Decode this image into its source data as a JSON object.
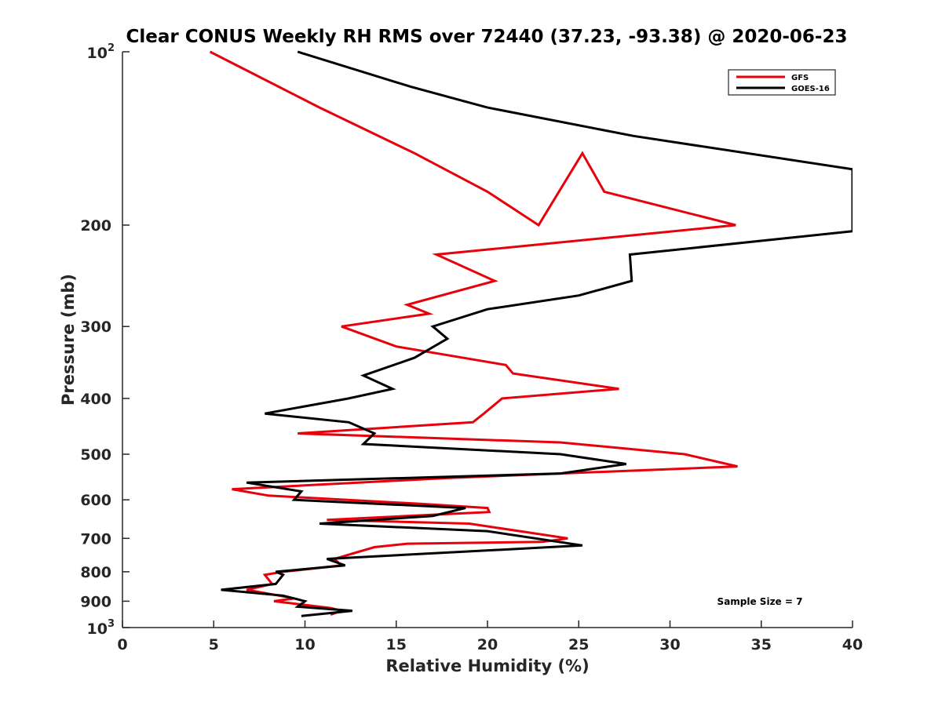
{
  "chart_data": {
    "type": "line",
    "title": "Clear CONUS Weekly RH RMS over 72440 (37.23, -93.38) @ 2020-06-23",
    "xlabel": "Relative Humidity (%)",
    "ylabel": "Pressure (mb)",
    "xlim": [
      0,
      40
    ],
    "ylim": [
      100,
      1000
    ],
    "y_scale": "log",
    "y_reversed": true,
    "grid": false,
    "legend_position": "top-right",
    "x_ticks": [
      0,
      5,
      10,
      15,
      20,
      25,
      30,
      35,
      40
    ],
    "y_ticks": [
      {
        "value": 100,
        "base": "10",
        "exp": "2"
      },
      {
        "value": 200,
        "label": "200"
      },
      {
        "value": 300,
        "label": "300"
      },
      {
        "value": 400,
        "label": "400"
      },
      {
        "value": 500,
        "label": "500"
      },
      {
        "value": 600,
        "label": "600"
      },
      {
        "value": 700,
        "label": "700"
      },
      {
        "value": 800,
        "label": "800"
      },
      {
        "value": 900,
        "label": "900"
      },
      {
        "value": 1000,
        "base": "10",
        "exp": "3"
      }
    ],
    "annotation": "Sample Size = 7",
    "series": [
      {
        "name": "GFS",
        "color": "#e8000b",
        "points": [
          [
            4.8,
            100
          ],
          [
            10.8,
            125
          ],
          [
            16.0,
            150
          ],
          [
            20.0,
            175
          ],
          [
            22.8,
            200
          ],
          [
            25.2,
            150
          ],
          [
            26.4,
            175
          ],
          [
            33.6,
            200
          ],
          [
            17.2,
            225
          ],
          [
            20.4,
            250
          ],
          [
            15.6,
            275
          ],
          [
            16.8,
            285
          ],
          [
            12.0,
            300
          ],
          [
            15.0,
            325
          ],
          [
            21.0,
            350
          ],
          [
            21.4,
            362
          ],
          [
            27.2,
            385
          ],
          [
            20.8,
            400
          ],
          [
            19.8,
            425
          ],
          [
            19.2,
            440
          ],
          [
            9.6,
            460
          ],
          [
            24.0,
            477
          ],
          [
            30.8,
            500
          ],
          [
            33.7,
            525
          ],
          [
            17.8,
            550
          ],
          [
            6.0,
            575
          ],
          [
            8.0,
            590
          ],
          [
            16.4,
            610
          ],
          [
            20.0,
            620
          ],
          [
            20.1,
            630
          ],
          [
            11.2,
            650
          ],
          [
            19.0,
            660
          ],
          [
            24.4,
            700
          ],
          [
            23.0,
            710
          ],
          [
            15.6,
            715
          ],
          [
            13.8,
            725
          ],
          [
            11.6,
            760
          ],
          [
            12.0,
            780
          ],
          [
            8.8,
            800
          ],
          [
            7.8,
            810
          ],
          [
            8.2,
            840
          ],
          [
            6.8,
            860
          ],
          [
            8.6,
            880
          ],
          [
            9.4,
            890
          ],
          [
            8.3,
            900
          ],
          [
            11.4,
            925
          ],
          [
            12.0,
            935
          ],
          [
            11.4,
            950
          ]
        ]
      },
      {
        "name": "GOES-16",
        "color": "#000000",
        "points": [
          [
            9.6,
            100
          ],
          [
            15.8,
            115
          ],
          [
            20.0,
            125
          ],
          [
            28.0,
            140
          ],
          [
            40.0,
            160
          ],
          [
            40.0,
            205
          ],
          [
            27.8,
            225
          ],
          [
            27.9,
            250
          ],
          [
            25.0,
            265
          ],
          [
            20.0,
            280
          ],
          [
            17.0,
            300
          ],
          [
            17.8,
            315
          ],
          [
            16.0,
            340
          ],
          [
            13.2,
            365
          ],
          [
            14.8,
            385
          ],
          [
            12.4,
            400
          ],
          [
            7.8,
            425
          ],
          [
            12.4,
            440
          ],
          [
            13.8,
            460
          ],
          [
            13.2,
            480
          ],
          [
            24.0,
            500
          ],
          [
            27.6,
            520
          ],
          [
            24.0,
            540
          ],
          [
            6.8,
            560
          ],
          [
            9.8,
            580
          ],
          [
            9.4,
            600
          ],
          [
            18.8,
            620
          ],
          [
            17.0,
            640
          ],
          [
            10.8,
            660
          ],
          [
            20.0,
            680
          ],
          [
            25.2,
            720
          ],
          [
            11.2,
            760
          ],
          [
            12.2,
            780
          ],
          [
            8.4,
            800
          ],
          [
            8.8,
            810
          ],
          [
            8.4,
            840
          ],
          [
            5.4,
            860
          ],
          [
            8.8,
            880
          ],
          [
            10.0,
            900
          ],
          [
            9.6,
            920
          ],
          [
            12.6,
            935
          ],
          [
            9.8,
            955
          ]
        ]
      }
    ]
  }
}
